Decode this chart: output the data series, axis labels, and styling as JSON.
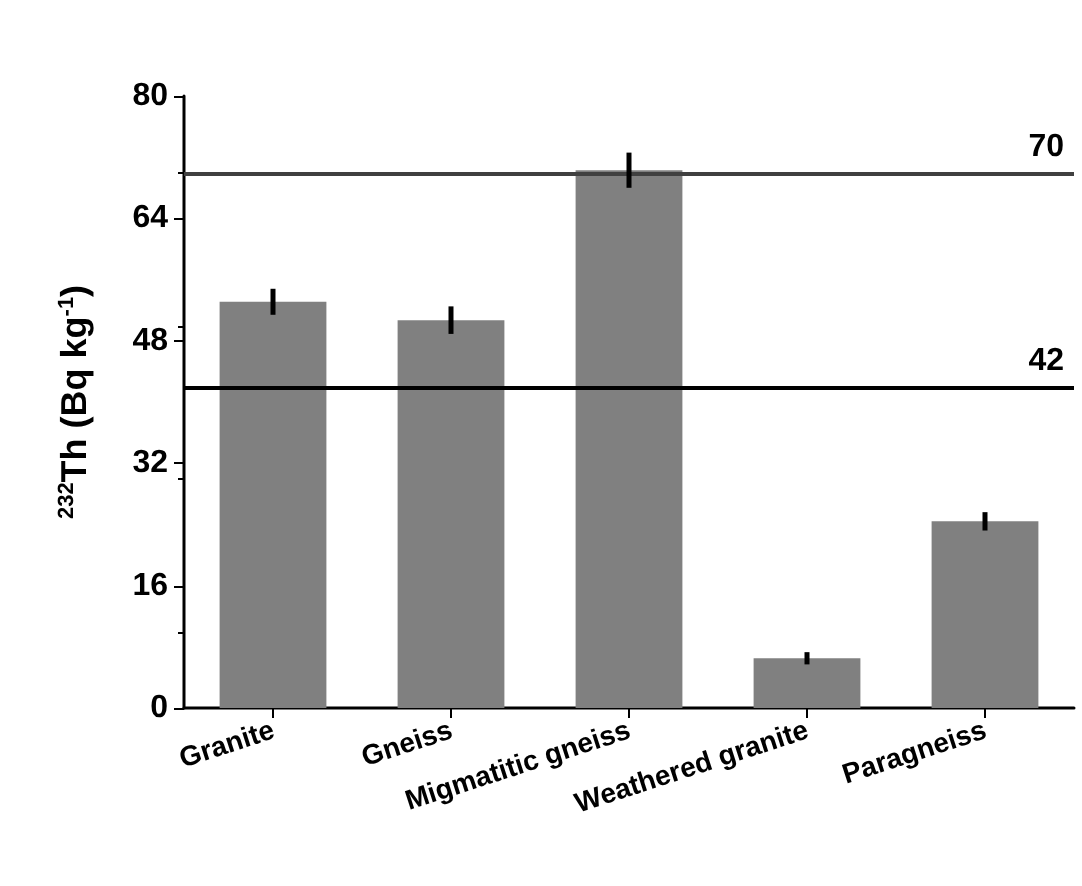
{
  "chart_data": {
    "type": "bar",
    "ylabel": "$^{232}$Th (Bq kg$^{-1}$)",
    "categories": [
      "Granite",
      "Gneiss",
      "Migmatitic gneiss",
      "Weathered granite",
      "Paragneiss"
    ],
    "values": [
      53.1,
      50.7,
      70.3,
      6.5,
      24.4
    ],
    "errors": [
      1.7,
      1.8,
      2.3,
      0.8,
      1.2
    ],
    "color": "#808080",
    "ylim": [
      0,
      80
    ],
    "yticks": [
      0,
      16,
      32,
      48,
      64,
      80
    ],
    "ref_lines": [
      {
        "axis": "y",
        "value": 70,
        "label": "70",
        "color": "#404040"
      },
      {
        "axis": "y",
        "value": 42,
        "label": "42",
        "color": "#000000"
      }
    ],
    "grid": false
  }
}
